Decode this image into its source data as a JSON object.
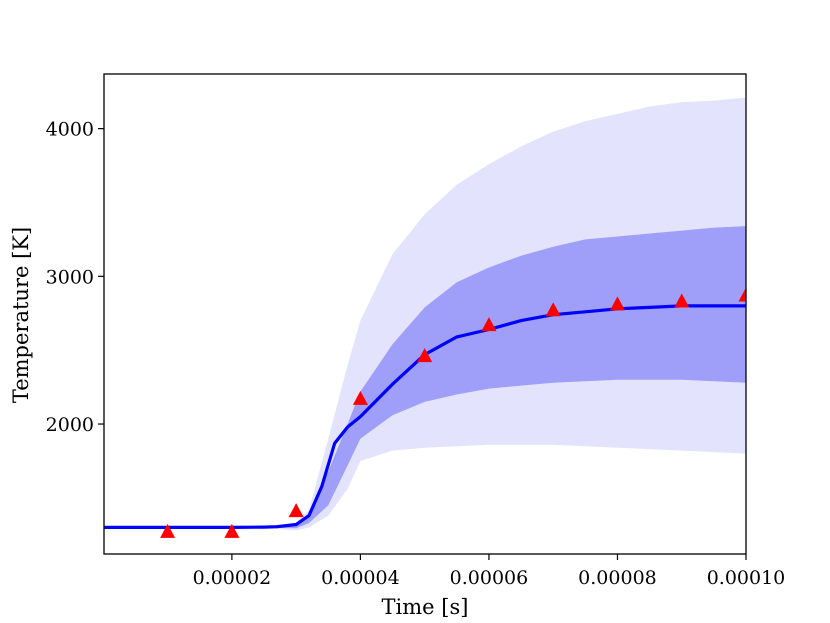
{
  "chart_data": {
    "type": "line",
    "title": "",
    "xlabel": "Time [s]",
    "ylabel": "Temperature [K]",
    "xlim": [
      1e-07,
      0.0001
    ],
    "ylim": [
      1120,
      4370
    ],
    "grid": false,
    "legend": "none",
    "xticks": [
      {
        "value": 2e-05,
        "label": "0.00002"
      },
      {
        "value": 4e-05,
        "label": "0.00004"
      },
      {
        "value": 6e-05,
        "label": "0.00006"
      },
      {
        "value": 8e-05,
        "label": "0.00008"
      },
      {
        "value": 0.0001,
        "label": "0.00010"
      }
    ],
    "yticks": [
      {
        "value": 2000,
        "label": "2000"
      },
      {
        "value": 3000,
        "label": "3000"
      },
      {
        "value": 4000,
        "label": "4000"
      }
    ],
    "band_x": [
      1e-07,
      2e-05,
      2.5e-05,
      3e-05,
      3.2e-05,
      3.5e-05,
      3.8e-05,
      4e-05,
      4.5e-05,
      5e-05,
      5.5e-05,
      6e-05,
      6.5e-05,
      7e-05,
      7.5e-05,
      8e-05,
      8.5e-05,
      9e-05,
      9.5e-05,
      0.0001
    ],
    "outer_band": {
      "color": "#e3e3fd",
      "upper": [
        1300,
        1300,
        1305,
        1330,
        1420,
        1900,
        2400,
        2700,
        3150,
        3420,
        3620,
        3760,
        3880,
        3980,
        4050,
        4100,
        4150,
        4180,
        4190,
        4210
      ],
      "lower": [
        1300,
        1300,
        1295,
        1280,
        1300,
        1380,
        1560,
        1750,
        1820,
        1840,
        1850,
        1860,
        1860,
        1860,
        1850,
        1840,
        1830,
        1820,
        1810,
        1800
      ]
    },
    "inner_band": {
      "color": "#9f9ffa",
      "upper": [
        1300,
        1300,
        1302,
        1320,
        1380,
        1680,
        2000,
        2220,
        2540,
        2790,
        2960,
        3060,
        3140,
        3200,
        3250,
        3270,
        3290,
        3310,
        3330,
        3340
      ],
      "lower": [
        1300,
        1300,
        1298,
        1295,
        1330,
        1450,
        1720,
        1900,
        2060,
        2150,
        2200,
        2240,
        2260,
        2280,
        2290,
        2300,
        2300,
        2300,
        2290,
        2280
      ]
    },
    "series": [
      {
        "color": "#0000ff",
        "type": "line",
        "x": [
          1e-07,
          1e-05,
          2e-05,
          2.5e-05,
          2.7e-05,
          3e-05,
          3.2e-05,
          3.4e-05,
          3.6e-05,
          3.8e-05,
          4e-05,
          4.5e-05,
          5e-05,
          5.5e-05,
          6e-05,
          6.5e-05,
          7e-05,
          7.5e-05,
          8e-05,
          8.5e-05,
          9e-05,
          9.5e-05,
          0.0001
        ],
        "y": [
          1300,
          1300,
          1300,
          1302,
          1305,
          1320,
          1380,
          1580,
          1870,
          1980,
          2050,
          2270,
          2470,
          2590,
          2640,
          2700,
          2740,
          2760,
          2780,
          2790,
          2800,
          2800,
          2800
        ]
      },
      {
        "color": "#ff0000",
        "type": "scatter",
        "marker": "triangle",
        "x": [
          1e-05,
          2e-05,
          3e-05,
          4e-05,
          5e-05,
          6e-05,
          7e-05,
          8e-05,
          9e-05,
          0.0001
        ],
        "y": [
          1270,
          1270,
          1410,
          2170,
          2460,
          2670,
          2770,
          2810,
          2830,
          2870
        ]
      }
    ]
  }
}
